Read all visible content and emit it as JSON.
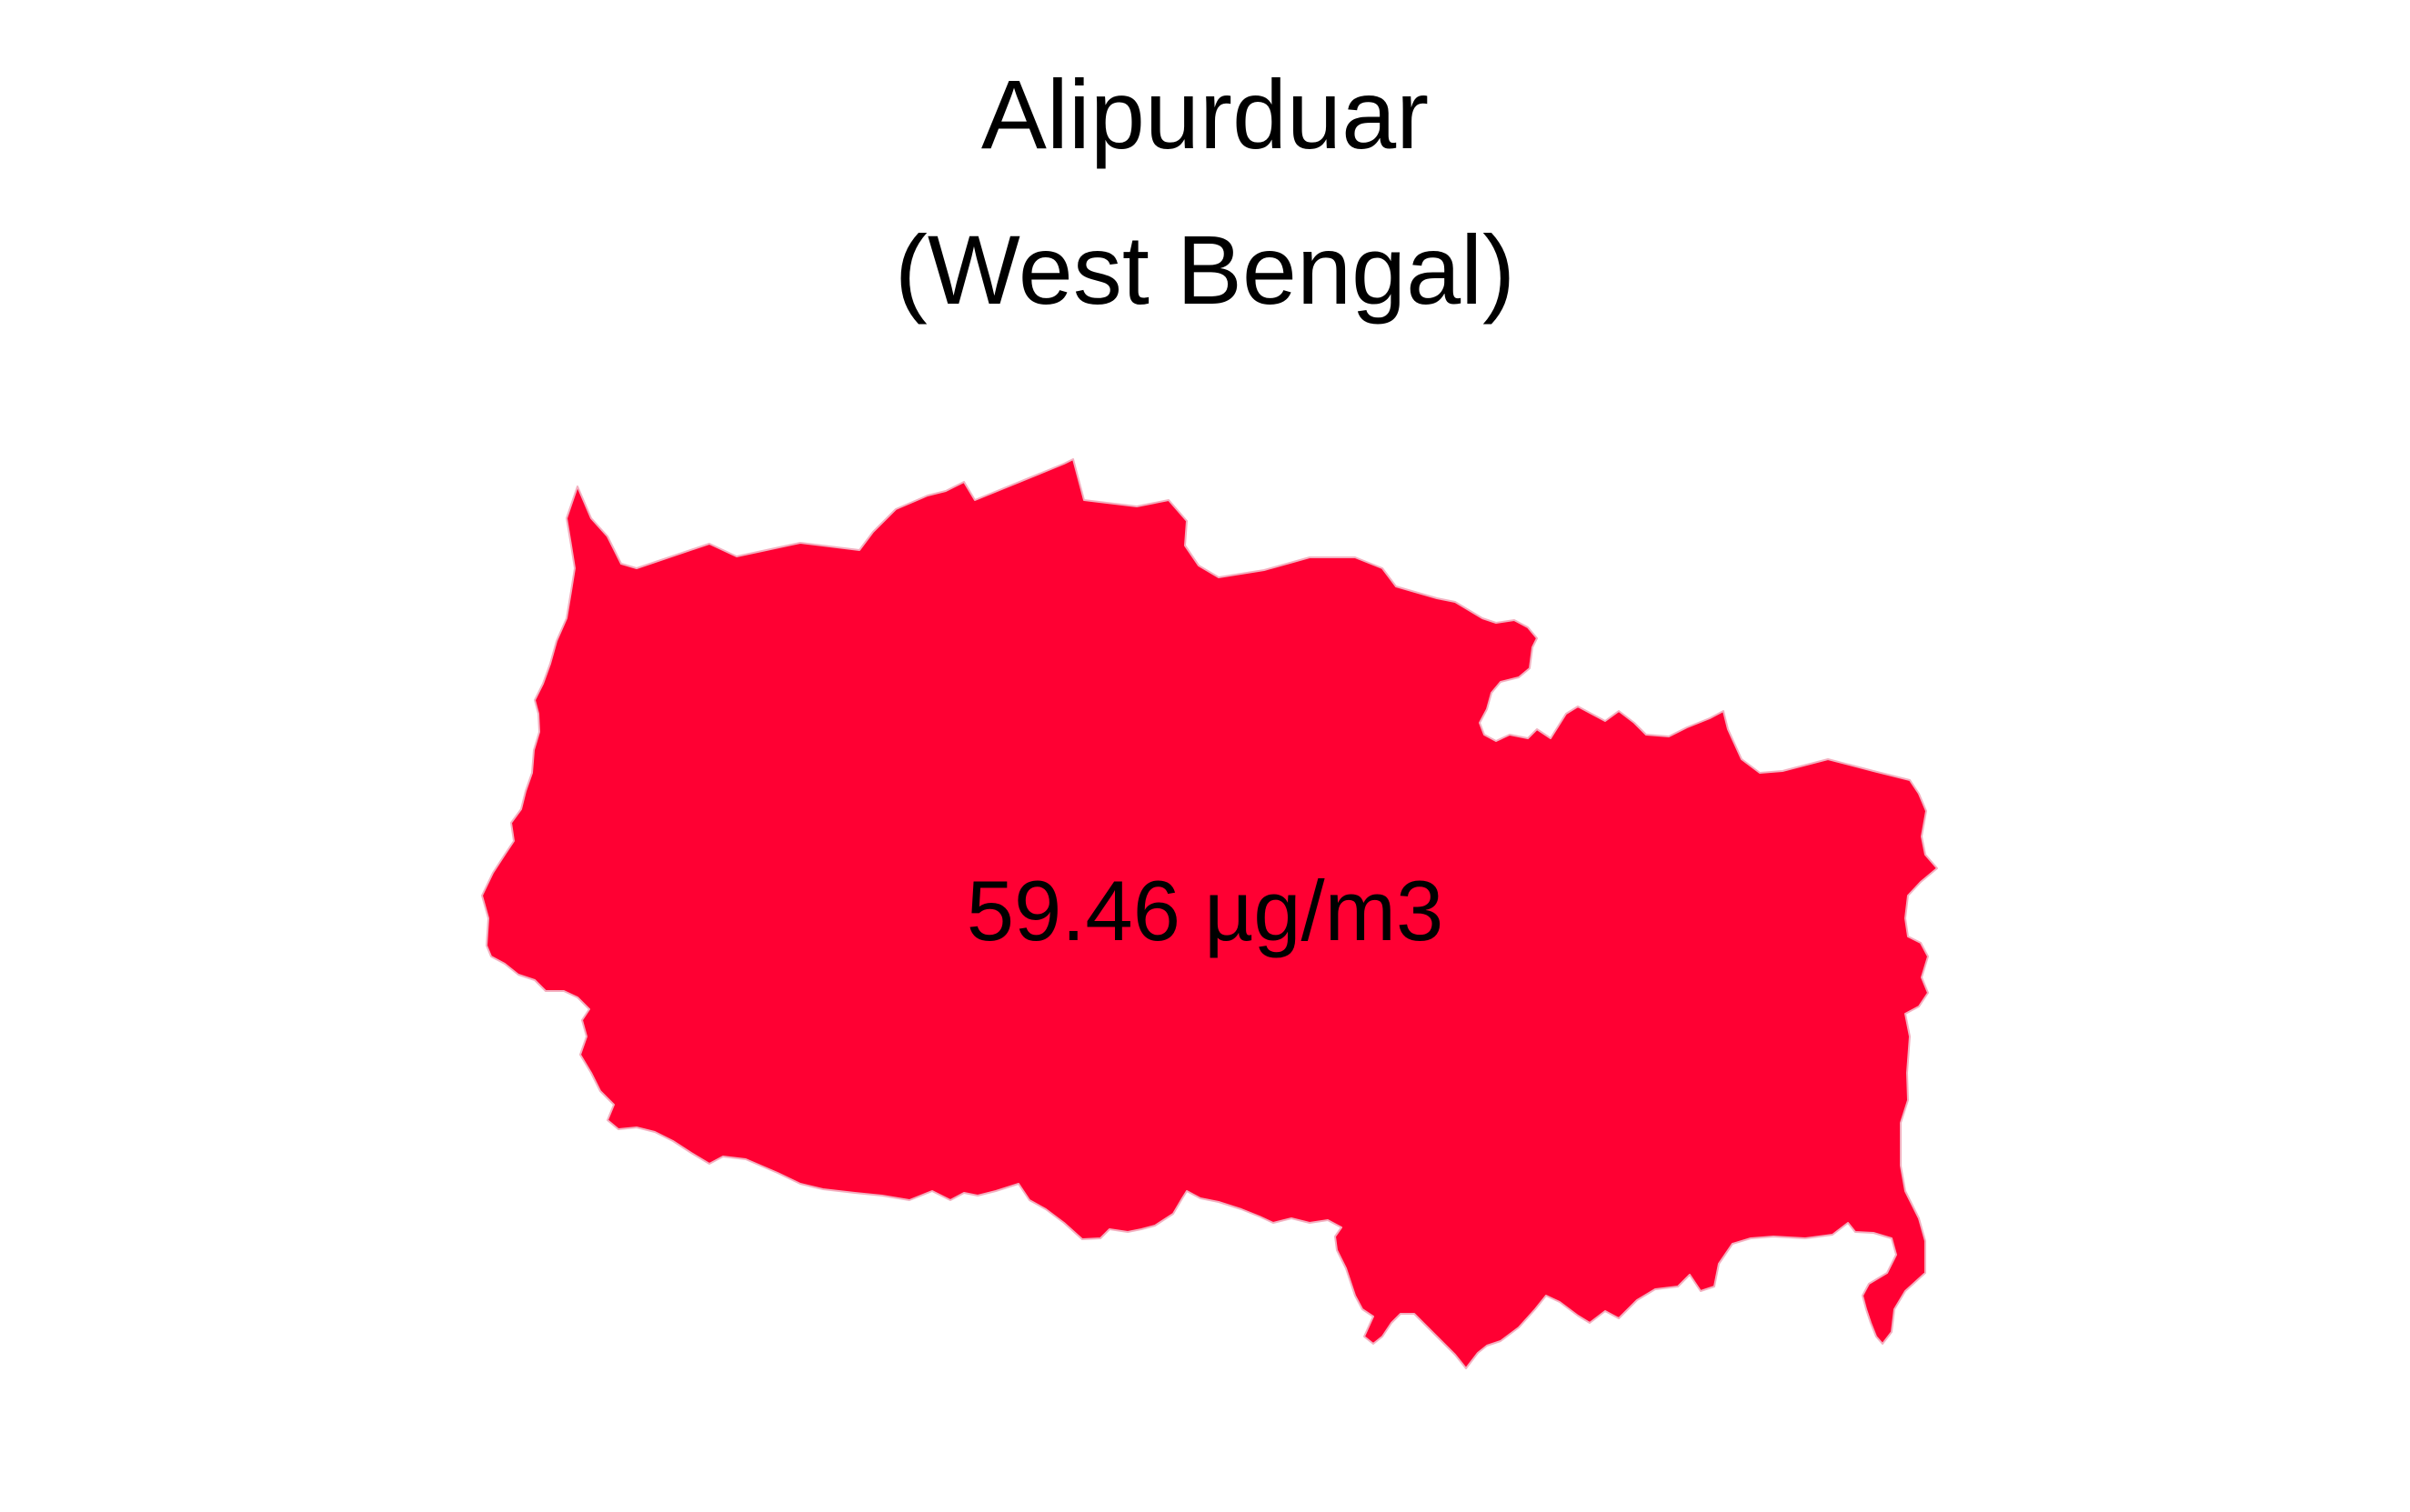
{
  "map": {
    "title": "Alipurduar",
    "subtitle": "(West Bengal)",
    "value_label": "59.46 µg/m3",
    "fill_color": "#FF0033",
    "edge_color": "#F3B0C0"
  }
}
